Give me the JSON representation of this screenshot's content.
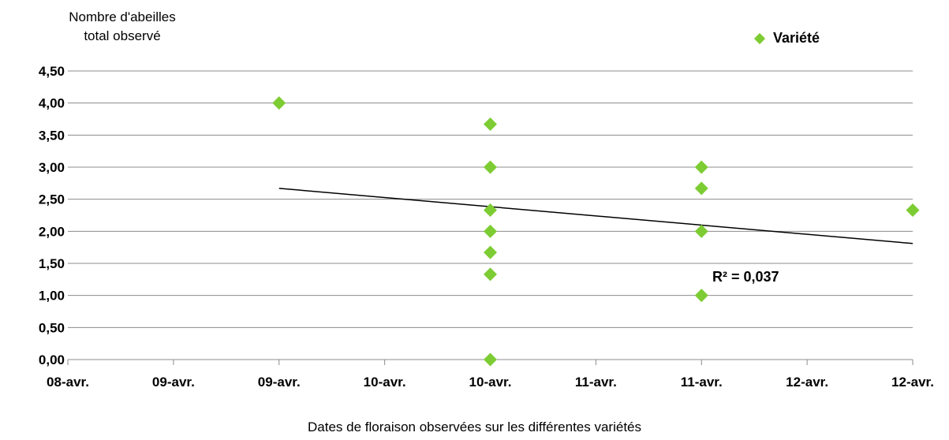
{
  "chart_data": {
    "type": "scatter",
    "ylabel": [
      "Nombre d'abeilles",
      "total observé"
    ],
    "xlabel": "Dates de floraison observées sur les différentes variétés",
    "y_ticks": [
      "0,00",
      "0,50",
      "1,00",
      "1,50",
      "2,00",
      "2,50",
      "3,00",
      "3,50",
      "4,00",
      "4,50"
    ],
    "ylim": [
      0,
      4.5
    ],
    "x_ticks": [
      "08-avr.",
      "09-avr.",
      "09-avr.",
      "10-avr.",
      "10-avr.",
      "11-avr.",
      "11-avr.",
      "12-avr.",
      "12-avr."
    ],
    "xlim": [
      "08-avr.",
      "12-avr. 12h"
    ],
    "x_tick_step_days": 0.5,
    "grid": "horizontal",
    "legend_position": "top-right",
    "series": [
      {
        "name": "Variété",
        "color": "#7dcc33",
        "marker": "diamond",
        "points": [
          {
            "x": "09-avr.",
            "y": 4.0
          },
          {
            "x": "10-avr.",
            "y": 3.67
          },
          {
            "x": "10-avr.",
            "y": 3.0
          },
          {
            "x": "10-avr.",
            "y": 2.33
          },
          {
            "x": "10-avr.",
            "y": 2.0
          },
          {
            "x": "10-avr.",
            "y": 1.67
          },
          {
            "x": "10-avr.",
            "y": 1.33
          },
          {
            "x": "10-avr.",
            "y": 0.0
          },
          {
            "x": "11-avr.",
            "y": 3.0
          },
          {
            "x": "11-avr.",
            "y": 2.67
          },
          {
            "x": "11-avr.",
            "y": 2.0
          },
          {
            "x": "11-avr.",
            "y": 1.0
          },
          {
            "x": "12-avr.",
            "y": 2.33
          }
        ]
      }
    ],
    "trendline": {
      "type": "linear",
      "color": "#000000",
      "from": {
        "x": "09-avr.",
        "y": 2.67
      },
      "to": {
        "x": "12-avr.",
        "y": 1.81
      }
    },
    "annotation": "R² = 0,037"
  }
}
